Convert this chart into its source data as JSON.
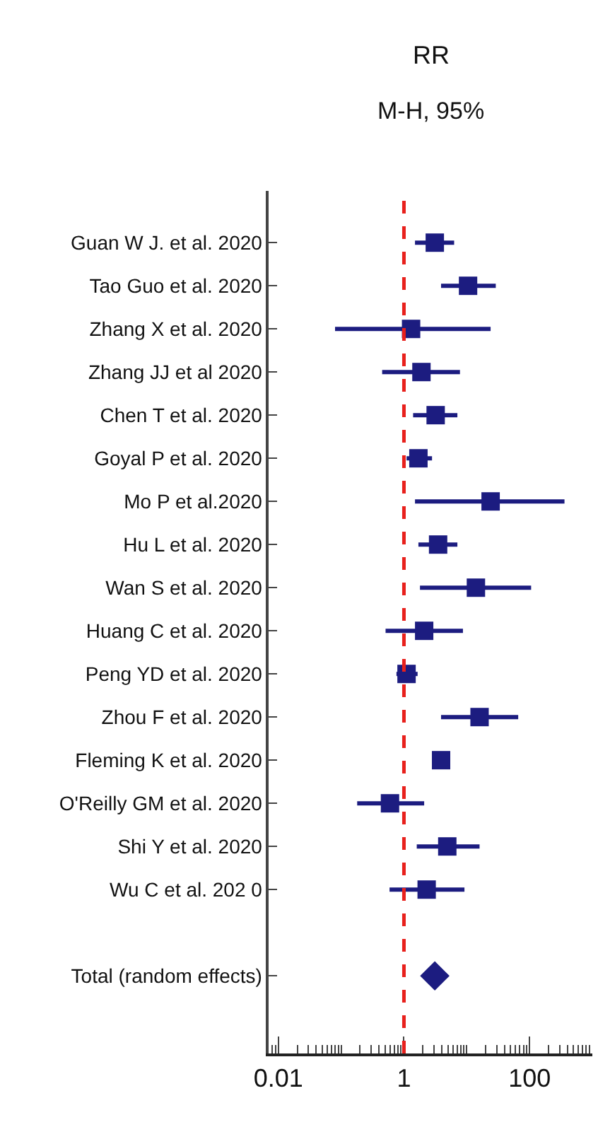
{
  "chart_data": {
    "type": "scatter",
    "orientation": "horizontal",
    "title": "RR",
    "subtitle": "M-H, 95%",
    "categories": [
      "Guan W J. et al. 2020",
      "Tao Guo et al. 2020",
      "Zhang X et al. 2020",
      "Zhang JJ et al 2020",
      "Chen T et al. 2020",
      "Goyal P et al. 2020",
      "Mo P et al.2020",
      "Hu L et al. 2020",
      "Wan S et al. 2020",
      "Huang C et al. 2020",
      "Peng YD et al. 2020",
      "Zhou F et al. 2020",
      "Fleming K et al. 2020",
      "O'Reilly GM et al. 2020",
      "Shi Y et al. 2020",
      "Wu C et al. 202 0",
      null,
      "Total (random effects)"
    ],
    "series": [
      {
        "color": "#1c1c80",
        "marker": "square",
        "values": [
          3.1,
          10.5,
          1.3,
          1.9,
          3.2,
          1.7,
          24,
          3.5,
          14,
          2.1,
          1.1,
          16,
          3.9,
          0.6,
          4.9,
          2.3,
          null,
          null
        ],
        "errors": [
          [
            1.5,
            6.3
          ],
          [
            3.9,
            29
          ],
          [
            0.08,
            24
          ],
          [
            0.45,
            7.8
          ],
          [
            1.4,
            7.1
          ],
          [
            1.1,
            2.8
          ],
          [
            1.5,
            360
          ],
          [
            1.7,
            7.1
          ],
          [
            1.8,
            106
          ],
          [
            0.51,
            8.7
          ],
          [
            0.76,
            1.65
          ],
          [
            3.9,
            66
          ],
          null,
          [
            0.18,
            2.1
          ],
          [
            1.6,
            16
          ],
          [
            0.59,
            9.2
          ],
          null,
          null
        ]
      },
      {
        "color": "#1c1c80",
        "marker": "diamond",
        "values": [
          null,
          null,
          null,
          null,
          null,
          null,
          null,
          null,
          null,
          null,
          null,
          null,
          null,
          null,
          null,
          null,
          null,
          3.1
        ]
      }
    ],
    "log": "x",
    "xlim": [
      0.007,
      1000
    ],
    "xticks": [
      0.01,
      1,
      100
    ],
    "ref_lines": [
      {
        "axis": "x",
        "value": 1,
        "color": "#e8201c",
        "line_style": "dashed"
      }
    ]
  }
}
